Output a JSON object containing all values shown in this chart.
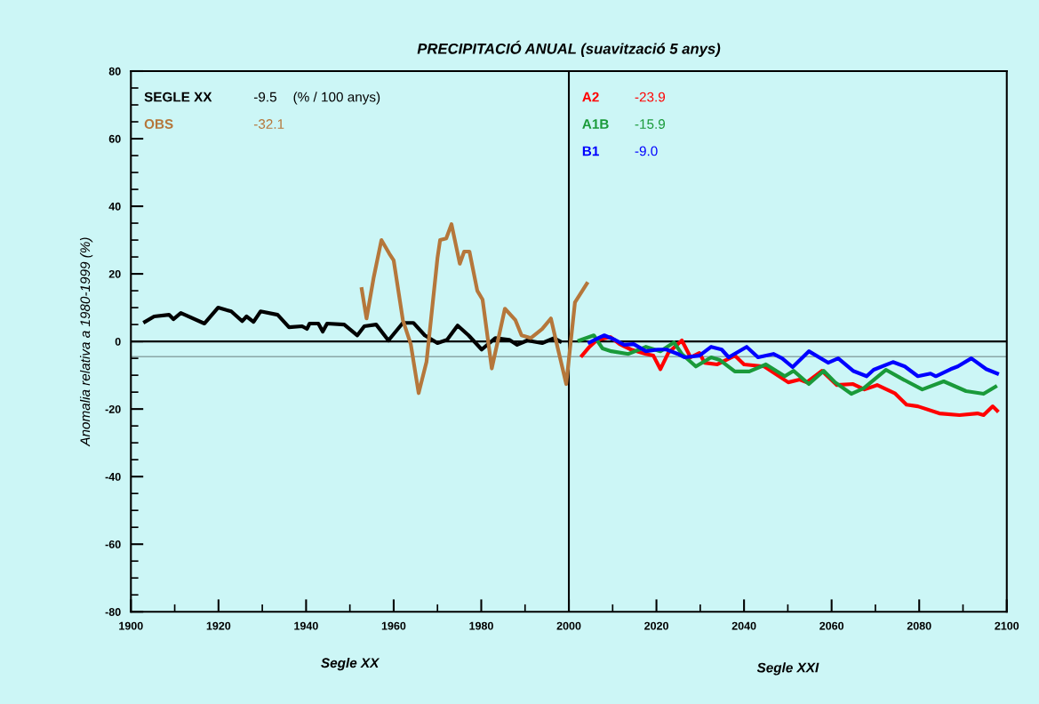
{
  "chart_data": {
    "type": "line",
    "title": "PRECIPITACIÓ ANUAL (suavització 5 anys)",
    "xlabel": "Segle XX",
    "ylabel": "Anomalia relativa a 1980-1999 (%)",
    "xlim": [
      1900,
      2100
    ],
    "xticks": [
      1900,
      1920,
      1940,
      1960,
      1980,
      2000,
      2020,
      2040,
      2060,
      2080,
      2100
    ],
    "ylim": [
      -80,
      80
    ],
    "yticks": [
      -80,
      -60,
      -40,
      -20,
      0,
      20,
      40,
      60,
      80
    ],
    "grid": false,
    "legend": "top left",
    "line_style": "solid",
    "marker": "none",
    "series": [
      {
        "name": "SEGLE XX",
        "color": "#000000",
        "x": [
          1903.2,
          1905.3,
          1908.7,
          1909.7,
          1911.4,
          1916.8,
          1919.9,
          1922.9,
          1925.4,
          1926.4,
          1928,
          1929.6,
          1933.5,
          1936.1,
          1939.1,
          1940.2,
          1940.8,
          1942.8,
          1943.8,
          1944.8,
          1948.7,
          1951.7,
          1953.3,
          1956,
          1958.8,
          1962.1,
          1964.5,
          1967.1,
          1970,
          1972.2,
          1974.6,
          1977.1,
          1980.1,
          1983.2,
          1986.4,
          1988.2,
          1990.5,
          1993.9,
          1996.6,
          1998
        ],
        "values": [
          5.8,
          7.4,
          7.9,
          6.6,
          8.4,
          5.3,
          10,
          8.9,
          6,
          7.4,
          5.8,
          8.9,
          7.9,
          4.2,
          4.5,
          3.7,
          5.3,
          5.3,
          2.9,
          5.3,
          5,
          1.8,
          4.5,
          5,
          0.3,
          5.5,
          5.5,
          1.8,
          -0.5,
          0.5,
          4.7,
          1.8,
          -2.4,
          1,
          0.5,
          -1,
          0.3,
          -0.5,
          1,
          0
        ]
      },
      {
        "name": "OBS",
        "color": "#b5773b",
        "x": [
          1952.7,
          1953.8,
          1955.4,
          1957.2,
          1959,
          1960,
          1962.1,
          1963.9,
          1965.7,
          1967.5,
          1970,
          1970.6,
          1972,
          1973.2,
          1975.1,
          1976.1,
          1977.3,
          1979.1,
          1980.3,
          1982.4,
          1985.4,
          1987.8,
          1989.2,
          1991.3,
          1993.9,
          1995.9,
          1997.4,
          1999.4,
          2001.4,
          2004.1
        ],
        "values": [
          15.5,
          6.8,
          18.7,
          30,
          26,
          24,
          6.3,
          -0.8,
          -15.3,
          -6,
          24.7,
          30,
          30.5,
          34.7,
          23,
          26.6,
          26.6,
          15,
          12.4,
          -8,
          9.7,
          6.3,
          1.8,
          1,
          3.7,
          6.8,
          -1.6,
          -12.6,
          11.6,
          17.1
        ]
      },
      {
        "name": "A2",
        "color": "#ff0000",
        "x": [
          2003,
          2004.7,
          2006.5,
          2009.5,
          2011.6,
          2014.2,
          2017.6,
          2019.3,
          2020.9,
          2022.7,
          2025.8,
          2027.8,
          2029.8,
          2031,
          2033.9,
          2037.9,
          2040,
          2044.6,
          2050.1,
          2052.7,
          2054.3,
          2057.8,
          2061.2,
          2064.9,
          2067.5,
          2070.4,
          2074.4,
          2077.1,
          2079.7,
          2084.6,
          2089.2,
          2093.3,
          2094.7,
          2096.8,
          2097.8
        ],
        "values": [
          -4.2,
          -1.6,
          0.5,
          1.3,
          -0.8,
          -2.4,
          -3.7,
          -4.2,
          -8.2,
          -3.4,
          0.3,
          -4.7,
          -3.4,
          -6.3,
          -6.8,
          -4.2,
          -6.8,
          -7.4,
          -12.1,
          -11.3,
          -12.1,
          -8.7,
          -12.9,
          -12.6,
          -14.2,
          -12.9,
          -15.3,
          -18.7,
          -19.2,
          -21.3,
          -21.8,
          -21.3,
          -21.8,
          -19.2,
          -20.5
        ]
      },
      {
        "name": "A1B",
        "color": "#1a9a3a",
        "x": [
          2002.4,
          2005.7,
          2007.7,
          2009.7,
          2013.6,
          2017.6,
          2020.9,
          2024,
          2025.8,
          2029,
          2032.5,
          2034.5,
          2037.9,
          2041.2,
          2045,
          2049.3,
          2051.3,
          2054.8,
          2058.2,
          2060.8,
          2064.5,
          2067.3,
          2072.4,
          2075.7,
          2080.7,
          2085.6,
          2090.7,
          2094.7,
          2097.4
        ],
        "values": [
          0.3,
          1.8,
          -2.1,
          -2.9,
          -3.7,
          -1.6,
          -2.9,
          -0.3,
          -3.7,
          -7.4,
          -4.7,
          -5.5,
          -8.9,
          -8.9,
          -6.8,
          -10.3,
          -8.7,
          -12.6,
          -8.7,
          -12.1,
          -15.5,
          -13.9,
          -8.4,
          -10.8,
          -14.2,
          -11.8,
          -14.7,
          -15.5,
          -13.4
        ]
      },
      {
        "name": "B1",
        "color": "#0000ff",
        "x": [
          2004.7,
          2006.7,
          2008.1,
          2010.5,
          2012.6,
          2014.8,
          2017.6,
          2020.3,
          2022.3,
          2024.9,
          2026.4,
          2029.8,
          2032.5,
          2034.9,
          2036.5,
          2040.6,
          2043.2,
          2046.7,
          2048.7,
          2051.1,
          2054.8,
          2059.2,
          2061.5,
          2064.9,
          2068,
          2069.6,
          2074,
          2076.7,
          2079.7,
          2082.6,
          2083.8,
          2087.2,
          2088.8,
          2091.9,
          2095.3,
          2097.8
        ],
        "values": [
          -0.3,
          1,
          1.8,
          0.5,
          -1,
          -0.8,
          -2.9,
          -2.4,
          -2.4,
          -3.7,
          -4.7,
          -4.2,
          -1.6,
          -2.4,
          -4.7,
          -1.6,
          -4.7,
          -3.7,
          -5,
          -7.6,
          -2.9,
          -6.3,
          -5,
          -8.7,
          -10.3,
          -8.4,
          -6.1,
          -7.4,
          -10.3,
          -9.5,
          -10.3,
          -8.2,
          -7.4,
          -5,
          -8.2,
          -9.5
        ]
      }
    ],
    "ref_lines": [
      {
        "axis": "y",
        "value": 0,
        "color": "#000000"
      },
      {
        "axis": "x",
        "value": 2000,
        "color": "#000000"
      },
      {
        "axis": "y",
        "value": -4.5,
        "color": "#8aa6a6"
      }
    ],
    "annotations": [
      "-9.5",
      "-32.1",
      "-23.9",
      "-15.9",
      "-9.0",
      "(% / 100 anys)",
      "Segle XXI"
    ]
  }
}
